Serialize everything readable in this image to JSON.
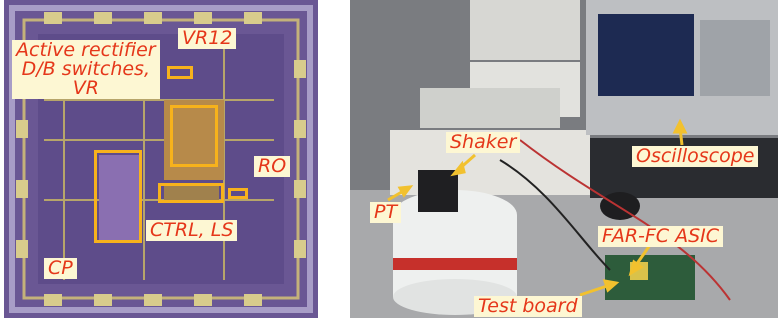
{
  "chip_panel": {
    "labels": {
      "active_rectifier": [
        "Active rectifier",
        "D/B switches,",
        "VR"
      ],
      "vr12": "VR12",
      "ro": "RO",
      "cp": "CP",
      "ctrl_ls": "CTRL, LS"
    },
    "colors": {
      "label_text": "#e5371a",
      "label_bg": "#fdf7d3",
      "highlight": "#f7b21c",
      "die": "#6f5a9a"
    }
  },
  "lab_panel": {
    "labels": {
      "shaker": "Shaker",
      "oscilloscope": "Oscilloscope",
      "pt": "PT",
      "asic": "FAR-FC ASIC",
      "test_board": "Test board"
    },
    "colors": {
      "arrow": "#f2c12e"
    }
  }
}
